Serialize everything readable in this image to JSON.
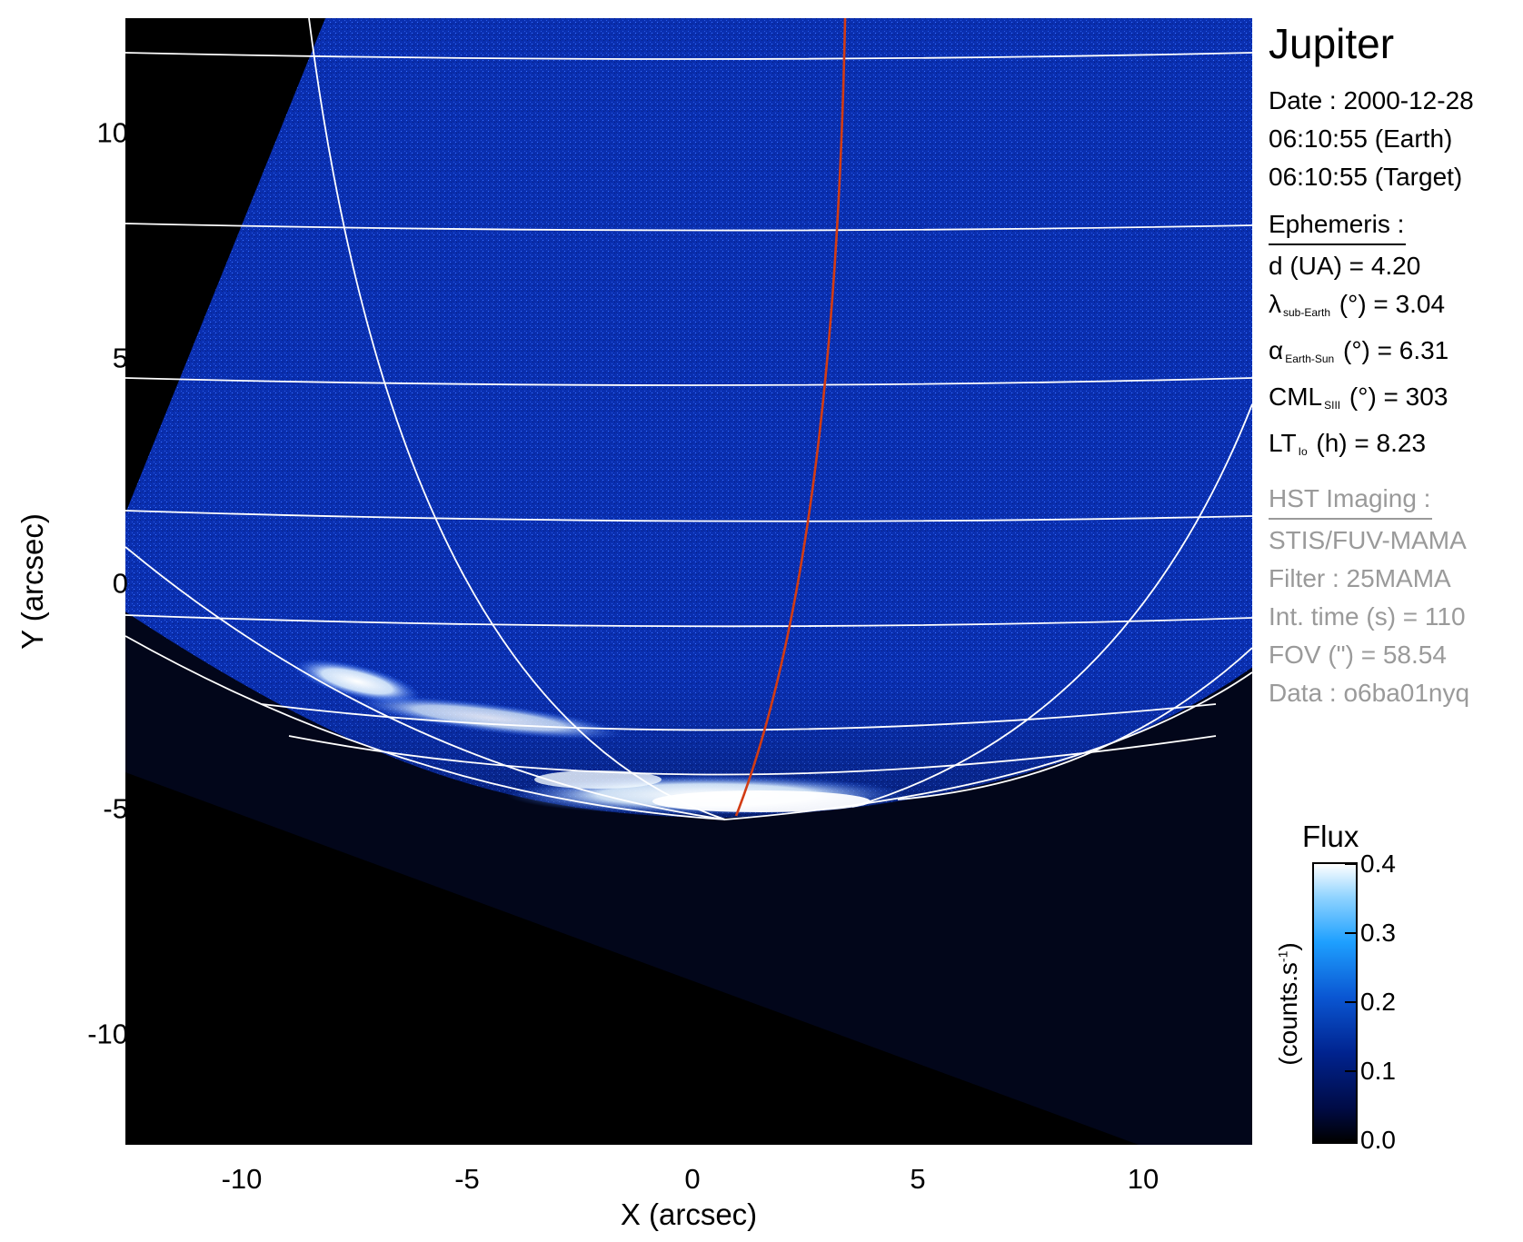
{
  "image": {
    "target": "Jupiter",
    "x_axis": {
      "label": "X (arcsec)",
      "range": [
        -12.5,
        12.5
      ],
      "ticks": [
        -10,
        -5,
        0,
        5,
        10
      ]
    },
    "y_axis": {
      "label": "Y (arcsec)",
      "range": [
        -12.5,
        12.5
      ],
      "ticks": [
        10,
        5,
        0,
        -5,
        -10
      ]
    },
    "colors": {
      "sky_background": "#000000",
      "disk_blue": "#0a2fb0",
      "aurora": "#ffffff",
      "grid_lines": "#ffffff",
      "footprint_line": "#d23c14"
    }
  },
  "info": {
    "date_label": "Date : 2000-12-28",
    "time_earth": "06:10:55 (Earth)",
    "time_target": "06:10:55 (Target)",
    "ephemeris_header": "Ephemeris :",
    "ephemeris": [
      {
        "symbol": "d (UA)",
        "sub": "",
        "value": " = 4.20"
      },
      {
        "symbol": "λ",
        "sub": "sub-Earth",
        "value": "(°) = 3.04"
      },
      {
        "symbol": "α",
        "sub": "Earth-Sun",
        "value": "(°) = 6.31"
      },
      {
        "symbol": "CML",
        "sub": "SIII",
        "value": "(°) = 303"
      },
      {
        "symbol": "LT",
        "sub": "Io",
        "value": "(h) = 8.23"
      }
    ],
    "hst_header": "HST Imaging :",
    "hst": [
      "STIS/FUV-MAMA",
      "Filter : 25MAMA",
      "Int. time (s) = 110",
      "FOV (\") = 58.54",
      "Data : o6ba01nyq"
    ]
  },
  "colorbar": {
    "title": "Flux",
    "unit_main": "(counts.s",
    "unit_sup": "-1",
    "unit_end": ")",
    "range": [
      0.0,
      0.4
    ],
    "ticks": [
      "0.4",
      "0.3",
      "0.2",
      "0.1",
      "0.0"
    ]
  }
}
